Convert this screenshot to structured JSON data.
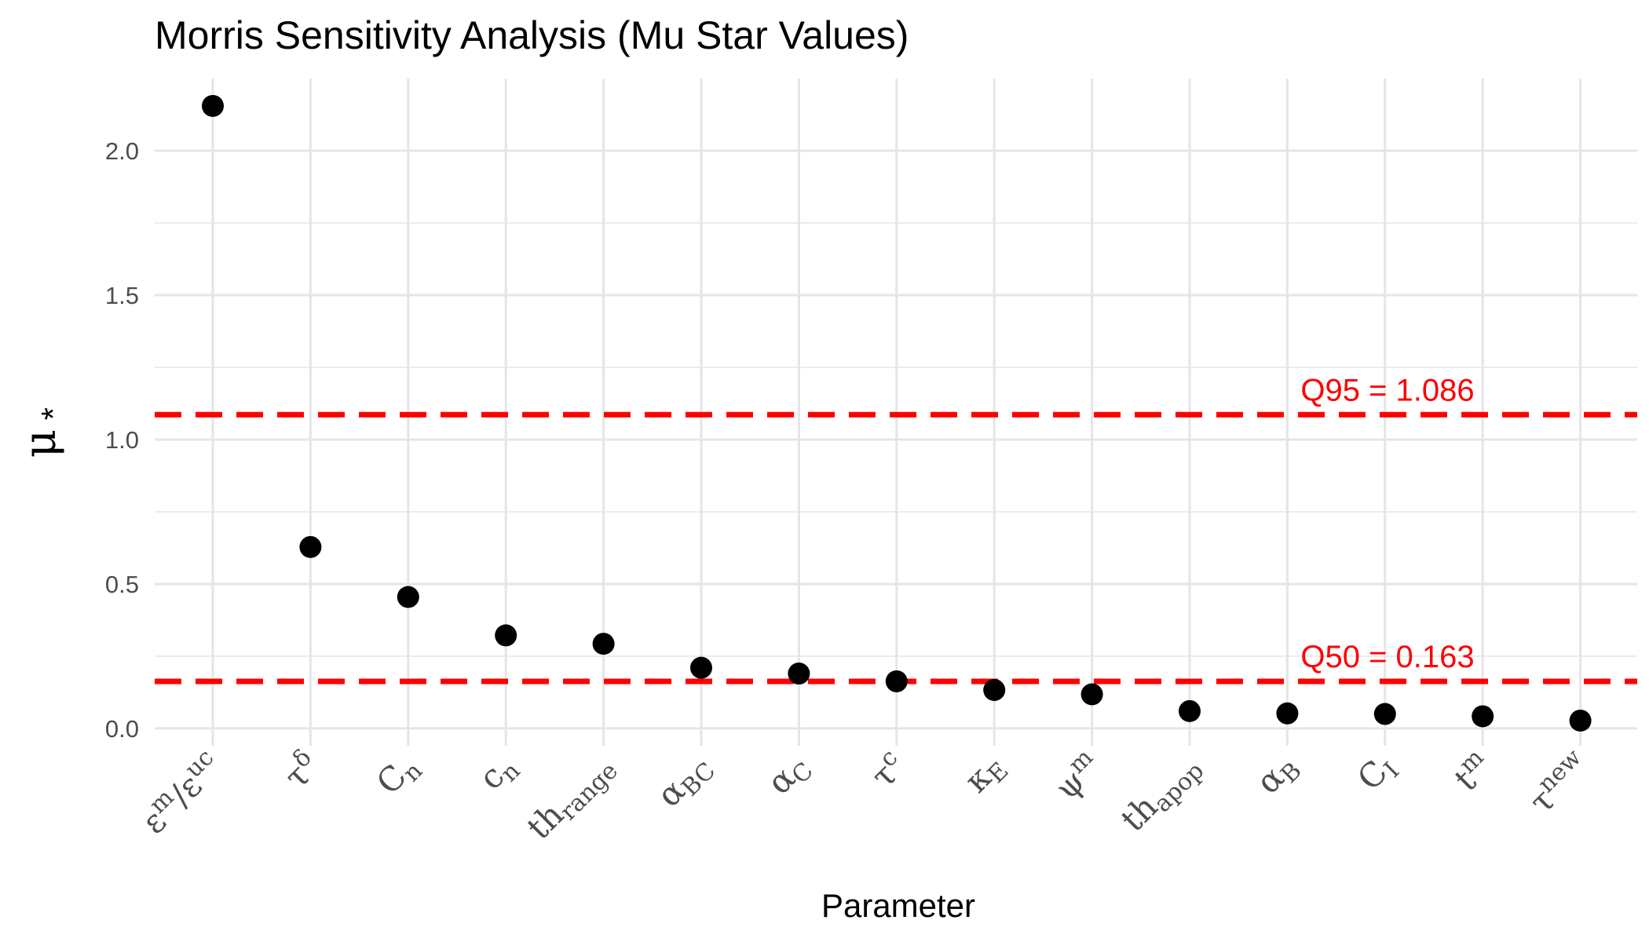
{
  "chart_data": {
    "type": "scatter",
    "title": "Morris Sensitivity Analysis (Mu Star Values)",
    "xlabel": "Parameter",
    "ylabel": {
      "symbol": "μ",
      "sup": "*"
    },
    "ylim": [
      -0.06,
      2.25
    ],
    "yticks": [
      {
        "value": 0.0,
        "label": "0.0"
      },
      {
        "value": 0.5,
        "label": "0.5"
      },
      {
        "value": 1.0,
        "label": "1.0"
      },
      {
        "value": 1.5,
        "label": "1.5"
      },
      {
        "value": 2.0,
        "label": "2.0"
      }
    ],
    "grid": true,
    "categories": [
      {
        "base": "ε",
        "sup": "m",
        "extra": [
          {
            "t": "/ε",
            "sup": "uc"
          }
        ]
      },
      {
        "base": "τ",
        "sup": "δ"
      },
      {
        "base": "C",
        "sub": "n"
      },
      {
        "base": "c",
        "sub": "n"
      },
      {
        "base": "th",
        "sub": "range"
      },
      {
        "base": "α",
        "sub": "BC"
      },
      {
        "base": "α",
        "sub": "C"
      },
      {
        "base": "τ",
        "sup": "c"
      },
      {
        "base": "κ",
        "sub": "E"
      },
      {
        "base": "ψ",
        "sup": "m"
      },
      {
        "base": "th",
        "sub": "apop"
      },
      {
        "base": "α",
        "sub": "B"
      },
      {
        "base": "C",
        "sub": "I"
      },
      {
        "base": "t",
        "sup": "m"
      },
      {
        "base": "τ",
        "sup": "new"
      }
    ],
    "values": [
      2.155,
      0.628,
      0.455,
      0.322,
      0.293,
      0.21,
      0.19,
      0.163,
      0.133,
      0.118,
      0.06,
      0.052,
      0.05,
      0.042,
      0.027
    ],
    "reference_lines": [
      {
        "value": 1.086,
        "label": "Q95 = 1.086"
      },
      {
        "value": 0.163,
        "label": "Q50 = 0.163"
      }
    ]
  },
  "colors": {
    "points": "#000000",
    "reference": "#ff0000",
    "grid": "#e5e5e5",
    "tick_text": "#4d4d4d"
  }
}
